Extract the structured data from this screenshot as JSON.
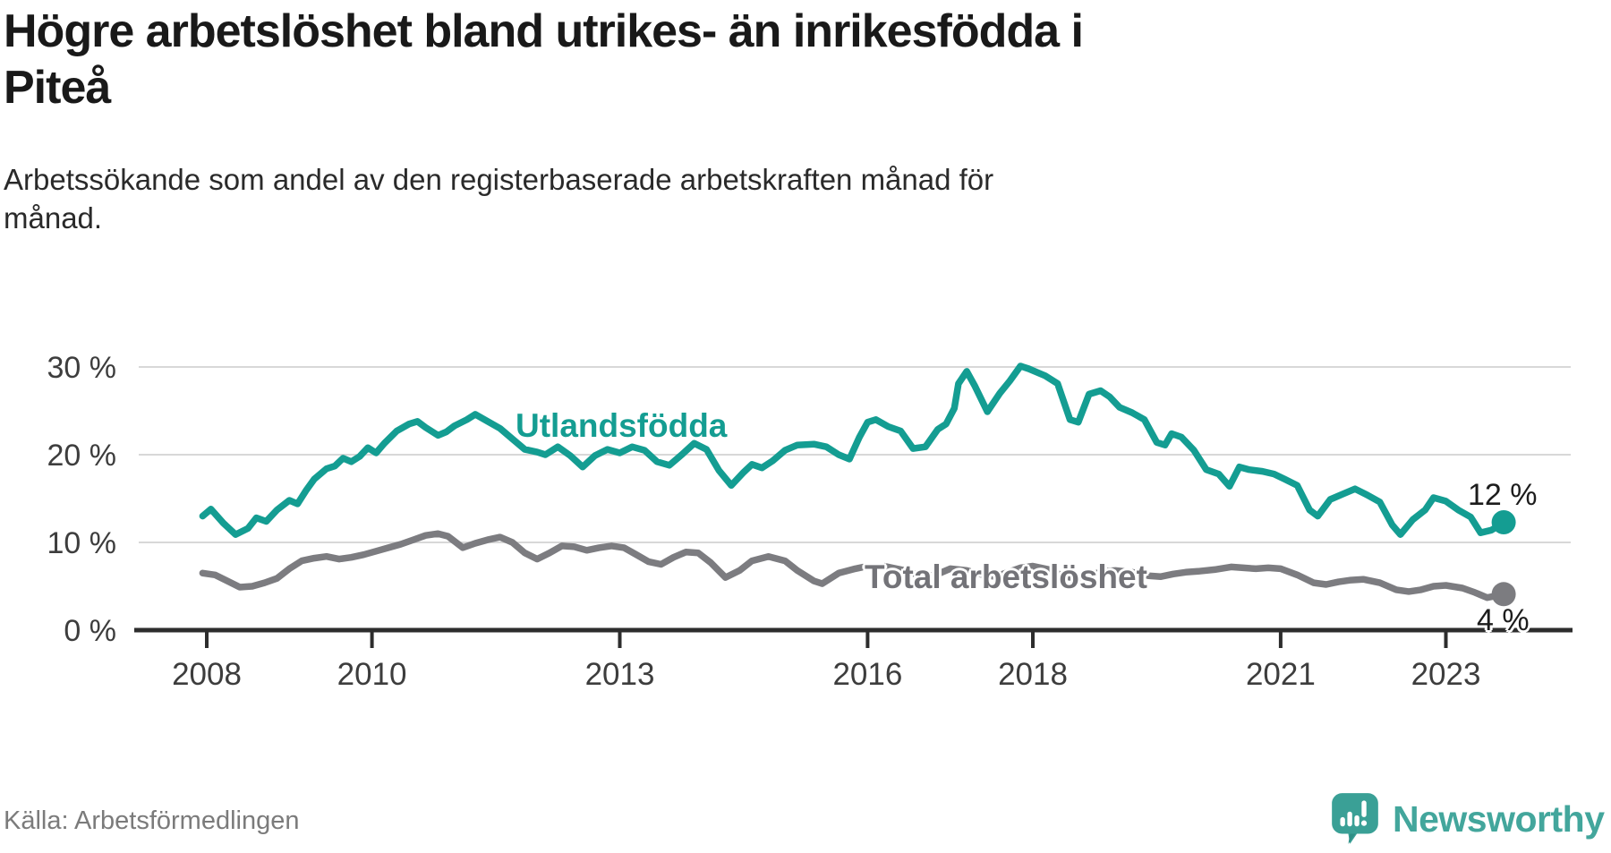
{
  "header": {
    "title": "Högre arbetslöshet bland utrikes- än inrikesfödda i\nPiteå",
    "subtitle": "Arbetssökande som andel av den registerbaserade arbetskraften månad för\nmånad."
  },
  "chart_data": {
    "type": "line",
    "title": "Högre arbetslöshet bland utrikes- än inrikesfödda i Piteå",
    "subtitle": "Arbetssökande som andel av den registerbaserade arbetskraften månad för månad.",
    "unit": "%",
    "grid": "horizontal",
    "legend_position": "inline-labels-on-lines",
    "x_axis": {
      "ticks": [
        2008,
        2010,
        2013,
        2016,
        2018,
        2021,
        2023
      ],
      "range": [
        2007.2,
        2024.5
      ]
    },
    "y_axis": {
      "ticks": [
        0,
        10,
        20,
        30
      ],
      "suffix": " %",
      "range": [
        0,
        31
      ]
    },
    "series": [
      {
        "name": "Utlandsfödda",
        "color": "#149d92",
        "end_label": "12 %",
        "end_value": 12,
        "points": [
          [
            2007.95,
            13.0
          ],
          [
            2008.05,
            13.8
          ],
          [
            2008.2,
            12.2
          ],
          [
            2008.35,
            10.9
          ],
          [
            2008.5,
            11.6
          ],
          [
            2008.6,
            12.8
          ],
          [
            2008.72,
            12.4
          ],
          [
            2008.85,
            13.7
          ],
          [
            2009.0,
            14.8
          ],
          [
            2009.1,
            14.4
          ],
          [
            2009.2,
            15.9
          ],
          [
            2009.3,
            17.2
          ],
          [
            2009.45,
            18.4
          ],
          [
            2009.55,
            18.7
          ],
          [
            2009.65,
            19.6
          ],
          [
            2009.75,
            19.2
          ],
          [
            2009.85,
            19.8
          ],
          [
            2009.95,
            20.8
          ],
          [
            2010.05,
            20.2
          ],
          [
            2010.15,
            21.3
          ],
          [
            2010.3,
            22.7
          ],
          [
            2010.45,
            23.5
          ],
          [
            2010.55,
            23.8
          ],
          [
            2010.65,
            23.1
          ],
          [
            2010.8,
            22.2
          ],
          [
            2010.9,
            22.6
          ],
          [
            2011.0,
            23.3
          ],
          [
            2011.15,
            24.0
          ],
          [
            2011.25,
            24.6
          ],
          [
            2011.4,
            23.8
          ],
          [
            2011.55,
            23.0
          ],
          [
            2011.7,
            21.8
          ],
          [
            2011.85,
            20.6
          ],
          [
            2012.0,
            20.3
          ],
          [
            2012.1,
            20.0
          ],
          [
            2012.25,
            20.9
          ],
          [
            2012.4,
            19.9
          ],
          [
            2012.55,
            18.6
          ],
          [
            2012.7,
            19.9
          ],
          [
            2012.85,
            20.6
          ],
          [
            2013.0,
            20.2
          ],
          [
            2013.15,
            20.9
          ],
          [
            2013.3,
            20.5
          ],
          [
            2013.45,
            19.2
          ],
          [
            2013.6,
            18.8
          ],
          [
            2013.75,
            20.0
          ],
          [
            2013.9,
            21.3
          ],
          [
            2014.05,
            20.6
          ],
          [
            2014.2,
            18.2
          ],
          [
            2014.35,
            16.5
          ],
          [
            2014.5,
            18.0
          ],
          [
            2014.6,
            18.9
          ],
          [
            2014.72,
            18.5
          ],
          [
            2014.85,
            19.3
          ],
          [
            2015.0,
            20.5
          ],
          [
            2015.15,
            21.1
          ],
          [
            2015.35,
            21.2
          ],
          [
            2015.5,
            20.9
          ],
          [
            2015.65,
            20.0
          ],
          [
            2015.78,
            19.5
          ],
          [
            2015.9,
            22.0
          ],
          [
            2016.0,
            23.7
          ],
          [
            2016.1,
            24.0
          ],
          [
            2016.25,
            23.2
          ],
          [
            2016.4,
            22.7
          ],
          [
            2016.55,
            20.7
          ],
          [
            2016.7,
            20.9
          ],
          [
            2016.85,
            22.9
          ],
          [
            2016.95,
            23.5
          ],
          [
            2017.05,
            25.3
          ],
          [
            2017.1,
            28.1
          ],
          [
            2017.2,
            29.5
          ],
          [
            2017.3,
            27.8
          ],
          [
            2017.45,
            24.9
          ],
          [
            2017.6,
            27.0
          ],
          [
            2017.72,
            28.4
          ],
          [
            2017.85,
            30.1
          ],
          [
            2017.95,
            29.8
          ],
          [
            2018.05,
            29.4
          ],
          [
            2018.15,
            29.0
          ],
          [
            2018.3,
            28.1
          ],
          [
            2018.45,
            24.0
          ],
          [
            2018.55,
            23.7
          ],
          [
            2018.68,
            26.9
          ],
          [
            2018.82,
            27.3
          ],
          [
            2018.93,
            26.6
          ],
          [
            2019.05,
            25.4
          ],
          [
            2019.2,
            24.8
          ],
          [
            2019.35,
            24.0
          ],
          [
            2019.5,
            21.4
          ],
          [
            2019.6,
            21.1
          ],
          [
            2019.68,
            22.4
          ],
          [
            2019.8,
            22.0
          ],
          [
            2019.95,
            20.5
          ],
          [
            2020.1,
            18.3
          ],
          [
            2020.25,
            17.8
          ],
          [
            2020.38,
            16.4
          ],
          [
            2020.5,
            18.6
          ],
          [
            2020.62,
            18.3
          ],
          [
            2020.78,
            18.1
          ],
          [
            2020.92,
            17.8
          ],
          [
            2021.05,
            17.2
          ],
          [
            2021.2,
            16.5
          ],
          [
            2021.35,
            13.7
          ],
          [
            2021.45,
            13.0
          ],
          [
            2021.6,
            14.9
          ],
          [
            2021.75,
            15.5
          ],
          [
            2021.9,
            16.1
          ],
          [
            2022.05,
            15.4
          ],
          [
            2022.2,
            14.6
          ],
          [
            2022.35,
            12.0
          ],
          [
            2022.45,
            10.9
          ],
          [
            2022.6,
            12.6
          ],
          [
            2022.75,
            13.7
          ],
          [
            2022.85,
            15.1
          ],
          [
            2023.0,
            14.7
          ],
          [
            2023.15,
            13.7
          ],
          [
            2023.3,
            12.9
          ],
          [
            2023.42,
            11.1
          ],
          [
            2023.55,
            11.4
          ],
          [
            2023.62,
            11.8
          ],
          [
            2023.7,
            12.3
          ]
        ]
      },
      {
        "name": "Total arbetslöshet",
        "color": "#7c7c80",
        "end_label": "4 %",
        "end_value": 4,
        "points": [
          [
            2007.95,
            6.5
          ],
          [
            2008.1,
            6.3
          ],
          [
            2008.25,
            5.6
          ],
          [
            2008.4,
            4.9
          ],
          [
            2008.55,
            5.0
          ],
          [
            2008.7,
            5.4
          ],
          [
            2008.85,
            5.9
          ],
          [
            2009.0,
            7.0
          ],
          [
            2009.15,
            7.9
          ],
          [
            2009.3,
            8.2
          ],
          [
            2009.45,
            8.4
          ],
          [
            2009.6,
            8.1
          ],
          [
            2009.75,
            8.3
          ],
          [
            2009.9,
            8.6
          ],
          [
            2010.05,
            9.0
          ],
          [
            2010.2,
            9.4
          ],
          [
            2010.35,
            9.8
          ],
          [
            2010.5,
            10.3
          ],
          [
            2010.65,
            10.8
          ],
          [
            2010.8,
            11.0
          ],
          [
            2010.92,
            10.7
          ],
          [
            2011.1,
            9.4
          ],
          [
            2011.25,
            9.9
          ],
          [
            2011.4,
            10.3
          ],
          [
            2011.55,
            10.6
          ],
          [
            2011.7,
            10.0
          ],
          [
            2011.85,
            8.8
          ],
          [
            2012.0,
            8.1
          ],
          [
            2012.15,
            8.8
          ],
          [
            2012.3,
            9.6
          ],
          [
            2012.45,
            9.5
          ],
          [
            2012.6,
            9.1
          ],
          [
            2012.75,
            9.4
          ],
          [
            2012.9,
            9.6
          ],
          [
            2013.05,
            9.4
          ],
          [
            2013.2,
            8.6
          ],
          [
            2013.35,
            7.8
          ],
          [
            2013.5,
            7.5
          ],
          [
            2013.65,
            8.3
          ],
          [
            2013.8,
            8.9
          ],
          [
            2013.95,
            8.8
          ],
          [
            2014.1,
            7.7
          ],
          [
            2014.28,
            6.0
          ],
          [
            2014.45,
            6.8
          ],
          [
            2014.6,
            7.9
          ],
          [
            2014.8,
            8.4
          ],
          [
            2015.0,
            7.9
          ],
          [
            2015.15,
            6.8
          ],
          [
            2015.35,
            5.6
          ],
          [
            2015.45,
            5.3
          ],
          [
            2015.65,
            6.5
          ],
          [
            2015.85,
            7.0
          ],
          [
            2016.0,
            7.3
          ],
          [
            2016.2,
            7.3
          ],
          [
            2016.35,
            7.0
          ],
          [
            2016.5,
            6.7
          ],
          [
            2016.68,
            6.0
          ],
          [
            2016.85,
            6.4
          ],
          [
            2017.0,
            7.0
          ],
          [
            2017.2,
            6.8
          ],
          [
            2017.4,
            6.3
          ],
          [
            2017.55,
            6.1
          ],
          [
            2017.7,
            6.6
          ],
          [
            2017.85,
            7.1
          ],
          [
            2018.0,
            7.3
          ],
          [
            2018.2,
            6.9
          ],
          [
            2018.38,
            6.1
          ],
          [
            2018.55,
            5.9
          ],
          [
            2018.7,
            6.3
          ],
          [
            2018.85,
            6.7
          ],
          [
            2019.0,
            6.8
          ],
          [
            2019.2,
            6.6
          ],
          [
            2019.4,
            6.2
          ],
          [
            2019.55,
            6.1
          ],
          [
            2019.7,
            6.4
          ],
          [
            2019.85,
            6.6
          ],
          [
            2020.0,
            6.7
          ],
          [
            2020.2,
            6.9
          ],
          [
            2020.4,
            7.2
          ],
          [
            2020.55,
            7.1
          ],
          [
            2020.7,
            7.0
          ],
          [
            2020.85,
            7.1
          ],
          [
            2021.0,
            7.0
          ],
          [
            2021.2,
            6.3
          ],
          [
            2021.4,
            5.4
          ],
          [
            2021.55,
            5.2
          ],
          [
            2021.7,
            5.5
          ],
          [
            2021.85,
            5.7
          ],
          [
            2022.0,
            5.8
          ],
          [
            2022.2,
            5.4
          ],
          [
            2022.4,
            4.6
          ],
          [
            2022.55,
            4.4
          ],
          [
            2022.7,
            4.6
          ],
          [
            2022.85,
            5.0
          ],
          [
            2023.0,
            5.1
          ],
          [
            2023.2,
            4.8
          ],
          [
            2023.35,
            4.3
          ],
          [
            2023.5,
            3.7
          ],
          [
            2023.6,
            3.9
          ],
          [
            2023.7,
            4.1
          ]
        ]
      }
    ],
    "colors": {
      "axis": "#2d2d2d",
      "gridline": "#d8d8d8",
      "tick_label": "#3d3d3d",
      "end_label": "#1c1c1c"
    }
  },
  "footer": {
    "source": "Källa: Arbetsförmedlingen",
    "brand": "Newsworthy",
    "brand_color": "#43a69c"
  }
}
